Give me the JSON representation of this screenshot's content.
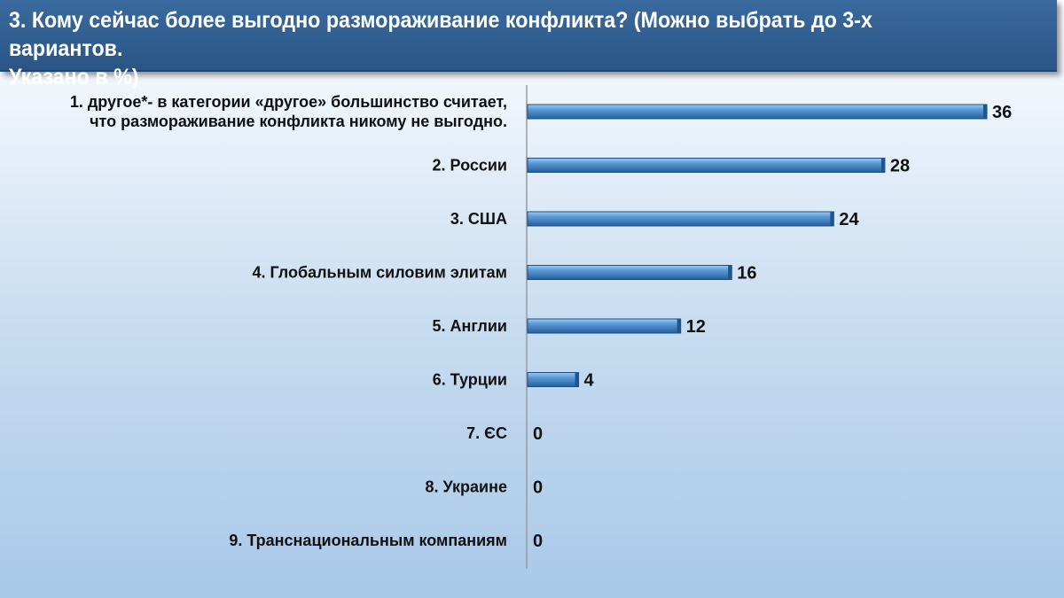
{
  "header": {
    "title": "3. Кому сейчас более выгодно размораживание конфликта? (Можно выбрать до 3-х вариантов.\n   Указано в %)"
  },
  "colors": {
    "header_bg": "#2d5a8c",
    "bar_fill": "#3b7cc0",
    "bar_highlight": "#8fc1ec"
  },
  "chart_data": {
    "type": "bar",
    "orientation": "horizontal",
    "categories": [
      "1. другое*- в категории «другое» большинство  считает,\nчто размораживание конфликта никому не выгодно.",
      "2. России",
      "3. США",
      "4. Глобальным силовим элитам",
      "5. Англии",
      "6. Турции",
      "7. ЄС",
      "8. Украине",
      "9. Транснациональным компаниям"
    ],
    "values": [
      36,
      28,
      24,
      16,
      12,
      4,
      0,
      0,
      0
    ],
    "value_labels": [
      "36",
      "28",
      "24",
      "16",
      "12",
      "4",
      "0",
      "0",
      "0"
    ],
    "xlim": [
      0,
      36
    ],
    "grid": false,
    "legend": "none"
  }
}
